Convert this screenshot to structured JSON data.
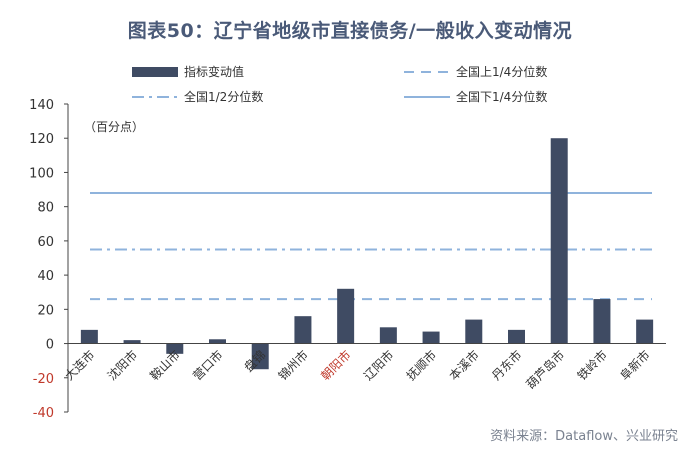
{
  "title": "图表50：辽宁省地级市直接债务/一般收入变动情况",
  "source": "资料来源：Dataflow、兴业研究",
  "colors": {
    "bar": "#3f4b63",
    "reference_lines": "#8fb3dc",
    "negative_tick": "#c0392b",
    "highlight_category": "#c0392b"
  },
  "chart_data": {
    "type": "bar",
    "unit_label": "（百分点）",
    "categories": [
      "大连市",
      "沈阳市",
      "鞍山市",
      "营口市",
      "盘锦",
      "锦州市",
      "朝阳市",
      "辽阳市",
      "抚顺市",
      "本溪市",
      "丹东市",
      "葫芦岛市",
      "铁岭市",
      "阜新市"
    ],
    "highlight_category": "朝阳市",
    "series": [
      {
        "name": "指标变动值",
        "values": [
          8,
          2,
          -6,
          2.5,
          -15,
          16,
          32,
          9.5,
          7,
          14,
          8,
          120,
          26,
          14
        ]
      }
    ],
    "reference_lines": [
      {
        "name": "全国上1/4分位数",
        "value": 26,
        "style": "dashed"
      },
      {
        "name": "全国1/2分位数",
        "value": 55,
        "style": "dashdot"
      },
      {
        "name": "全国下1/4分位数",
        "value": 88,
        "style": "solid"
      }
    ],
    "ylim": [
      -40,
      140
    ],
    "yticks": [
      140,
      120,
      100,
      80,
      60,
      40,
      20,
      0,
      -20,
      -40
    ],
    "grid": false,
    "legend_position": "top"
  }
}
